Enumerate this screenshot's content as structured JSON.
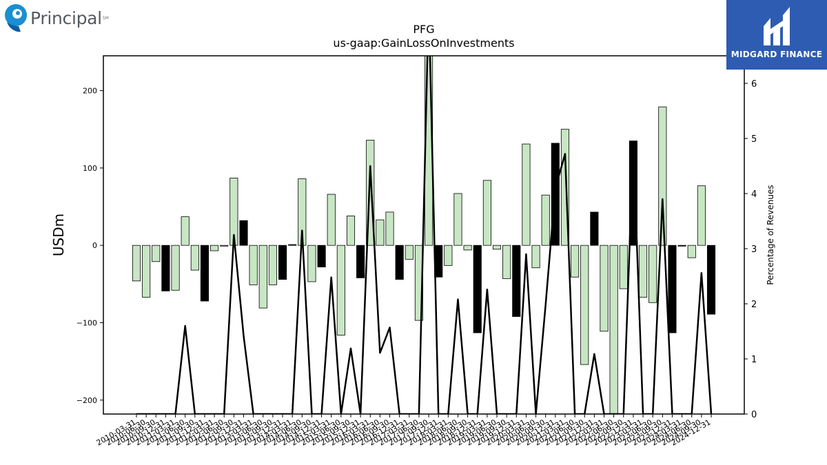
{
  "logos": {
    "left_text": "Principal",
    "left_mark": "SM",
    "right_text": "MIDGARD FINANCE"
  },
  "colors": {
    "bar_fill": "#c8e6c4",
    "bar_highlight": "#000000",
    "line": "#000000",
    "brand_blue": "#2e5cb2"
  },
  "chart_data": {
    "type": "bar",
    "title": "PFG",
    "subtitle": "us-gaap:GainLossOnInvestments",
    "ylabel": "USDm",
    "y2label": "Percentage of Revenues",
    "ylim": [
      -218,
      245
    ],
    "y2lim": [
      0,
      6.5
    ],
    "yticks": [
      -200,
      -100,
      0,
      100,
      200
    ],
    "y2ticks": [
      0,
      1,
      2,
      3,
      4,
      5,
      6
    ],
    "categories": [
      "2010-03-31",
      "2010-06-30",
      "2010-09-30",
      "2010-12-31",
      "2011-03-31",
      "2011-06-30",
      "2011-09-30",
      "2011-12-31",
      "2012-03-31",
      "2012-06-30",
      "2012-09-30",
      "2012-12-31",
      "2013-03-31",
      "2013-06-30",
      "2013-09-30",
      "2013-12-31",
      "2014-03-31",
      "2014-06-30",
      "2014-09-30",
      "2014-12-31",
      "2015-03-31",
      "2015-06-30",
      "2015-09-30",
      "2015-12-31",
      "2016-03-31",
      "2016-06-30",
      "2016-09-30",
      "2016-12-31",
      "2017-03-31",
      "2017-06-30",
      "2017-09-30",
      "2017-12-31",
      "2018-03-31",
      "2018-06-30",
      "2018-09-30",
      "2018-12-31",
      "2019-03-31",
      "2019-06-30",
      "2019-09-30",
      "2019-12-31",
      "2020-03-31",
      "2020-06-30",
      "2020-09-30",
      "2020-12-31",
      "2021-03-31",
      "2021-06-30",
      "2021-09-30",
      "2021-12-31",
      "2022-03-31",
      "2022-06-30",
      "2022-09-30",
      "2022-12-31",
      "2023-03-31",
      "2023-06-30",
      "2023-09-30",
      "2023-12-31",
      "2024-03-31",
      "2024-06-30",
      "2024-09-30",
      "2024-12-31"
    ],
    "series": [
      {
        "kind": "bar",
        "values": [
          -46,
          -67,
          -21,
          -59,
          -58,
          37,
          -32,
          -72,
          -7,
          -1,
          87,
          32,
          -51,
          -81,
          -51,
          -44,
          1,
          86,
          -47,
          -28,
          66,
          -116,
          38,
          -42,
          136,
          33,
          43,
          -44,
          -18,
          -97,
          260,
          -41,
          -26,
          67,
          -6,
          -113,
          84,
          -5,
          -43,
          -92,
          131,
          -29,
          65,
          132,
          150,
          -41,
          -154,
          43,
          -111,
          -230,
          -56,
          135,
          -67,
          -74,
          179,
          -113,
          -1,
          -16,
          77,
          -89
        ],
        "highlight": [
          false,
          false,
          false,
          true,
          false,
          false,
          false,
          true,
          false,
          false,
          false,
          true,
          false,
          false,
          false,
          true,
          true,
          false,
          false,
          true,
          false,
          false,
          false,
          true,
          false,
          false,
          false,
          true,
          false,
          false,
          false,
          true,
          false,
          false,
          false,
          true,
          false,
          false,
          false,
          true,
          false,
          false,
          false,
          true,
          false,
          false,
          false,
          true,
          false,
          false,
          false,
          true,
          false,
          false,
          false,
          true,
          true,
          false,
          false,
          true
        ]
      },
      {
        "kind": "line",
        "axis": "right",
        "values": [
          0,
          0,
          0,
          0,
          0,
          1.6,
          0,
          0,
          0,
          0,
          3.25,
          1.42,
          0,
          0,
          0,
          0,
          0,
          3.33,
          0,
          0,
          2.48,
          0,
          1.19,
          0,
          4.5,
          1.11,
          1.57,
          0,
          0,
          0,
          7.5,
          0,
          0,
          2.08,
          0,
          0,
          2.26,
          0,
          0,
          0,
          2.9,
          0,
          1.98,
          4.1,
          4.72,
          0,
          0,
          1.09,
          0,
          0,
          0,
          4.9,
          0,
          0,
          3.9,
          0,
          0,
          0,
          2.56,
          0
        ]
      }
    ]
  }
}
